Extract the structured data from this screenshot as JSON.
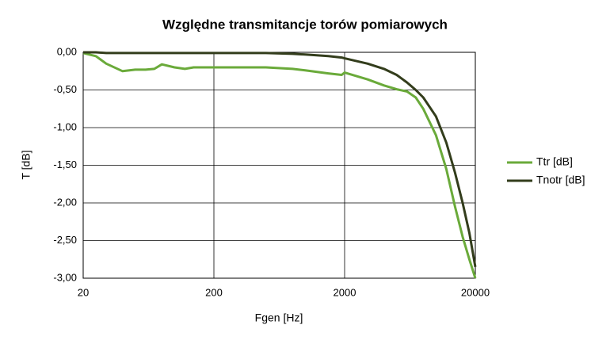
{
  "chart_data": {
    "type": "line",
    "title": "Względne transmitancje torów pomiarowych",
    "x_label": "Fgen [Hz]",
    "y_label": "T [dB]",
    "x": [
      20,
      25,
      30,
      40,
      50,
      60,
      70,
      80,
      100,
      120,
      140,
      160,
      200,
      300,
      500,
      800,
      1000,
      1500,
      1900,
      2000,
      3000,
      4000,
      5000,
      6000,
      7000,
      8000,
      10000,
      12000,
      14000,
      16000,
      18000,
      20000
    ],
    "series": [
      {
        "name": "Ttr [dB]",
        "color": "#6aaa3a",
        "values": [
          -0.01,
          -0.05,
          -0.15,
          -0.25,
          -0.23,
          -0.23,
          -0.22,
          -0.16,
          -0.2,
          -0.22,
          -0.2,
          -0.2,
          -0.2,
          -0.2,
          -0.2,
          -0.22,
          -0.24,
          -0.28,
          -0.3,
          -0.27,
          -0.36,
          -0.44,
          -0.49,
          -0.52,
          -0.6,
          -0.75,
          -1.1,
          -1.55,
          -2.05,
          -2.45,
          -2.75,
          -3.0
        ]
      },
      {
        "name": "Tnotr [dB]",
        "color": "#333d1c",
        "values": [
          0,
          0,
          -0.01,
          -0.01,
          -0.01,
          -0.01,
          -0.01,
          -0.01,
          -0.01,
          -0.01,
          -0.01,
          -0.01,
          -0.01,
          -0.01,
          -0.01,
          -0.02,
          -0.03,
          -0.05,
          -0.07,
          -0.08,
          -0.15,
          -0.22,
          -0.3,
          -0.4,
          -0.5,
          -0.6,
          -0.85,
          -1.2,
          -1.6,
          -2.0,
          -2.4,
          -2.85
        ]
      }
    ],
    "xlim": [
      20,
      20000
    ],
    "xticks": [
      20,
      200,
      2000,
      20000
    ],
    "log_x": true,
    "ylim": [
      -3,
      0
    ],
    "yticks": [
      {
        "value": -3,
        "label": "-3,00"
      },
      {
        "value": -2.5,
        "label": "-2,50"
      },
      {
        "value": -2,
        "label": "-2,00"
      },
      {
        "value": -1.5,
        "label": "-1,50"
      },
      {
        "value": -1,
        "label": "-1,00"
      },
      {
        "value": -0.5,
        "label": "-0,50"
      },
      {
        "value": 0,
        "label": "0,00"
      }
    ],
    "grid": true,
    "legend": "right"
  }
}
